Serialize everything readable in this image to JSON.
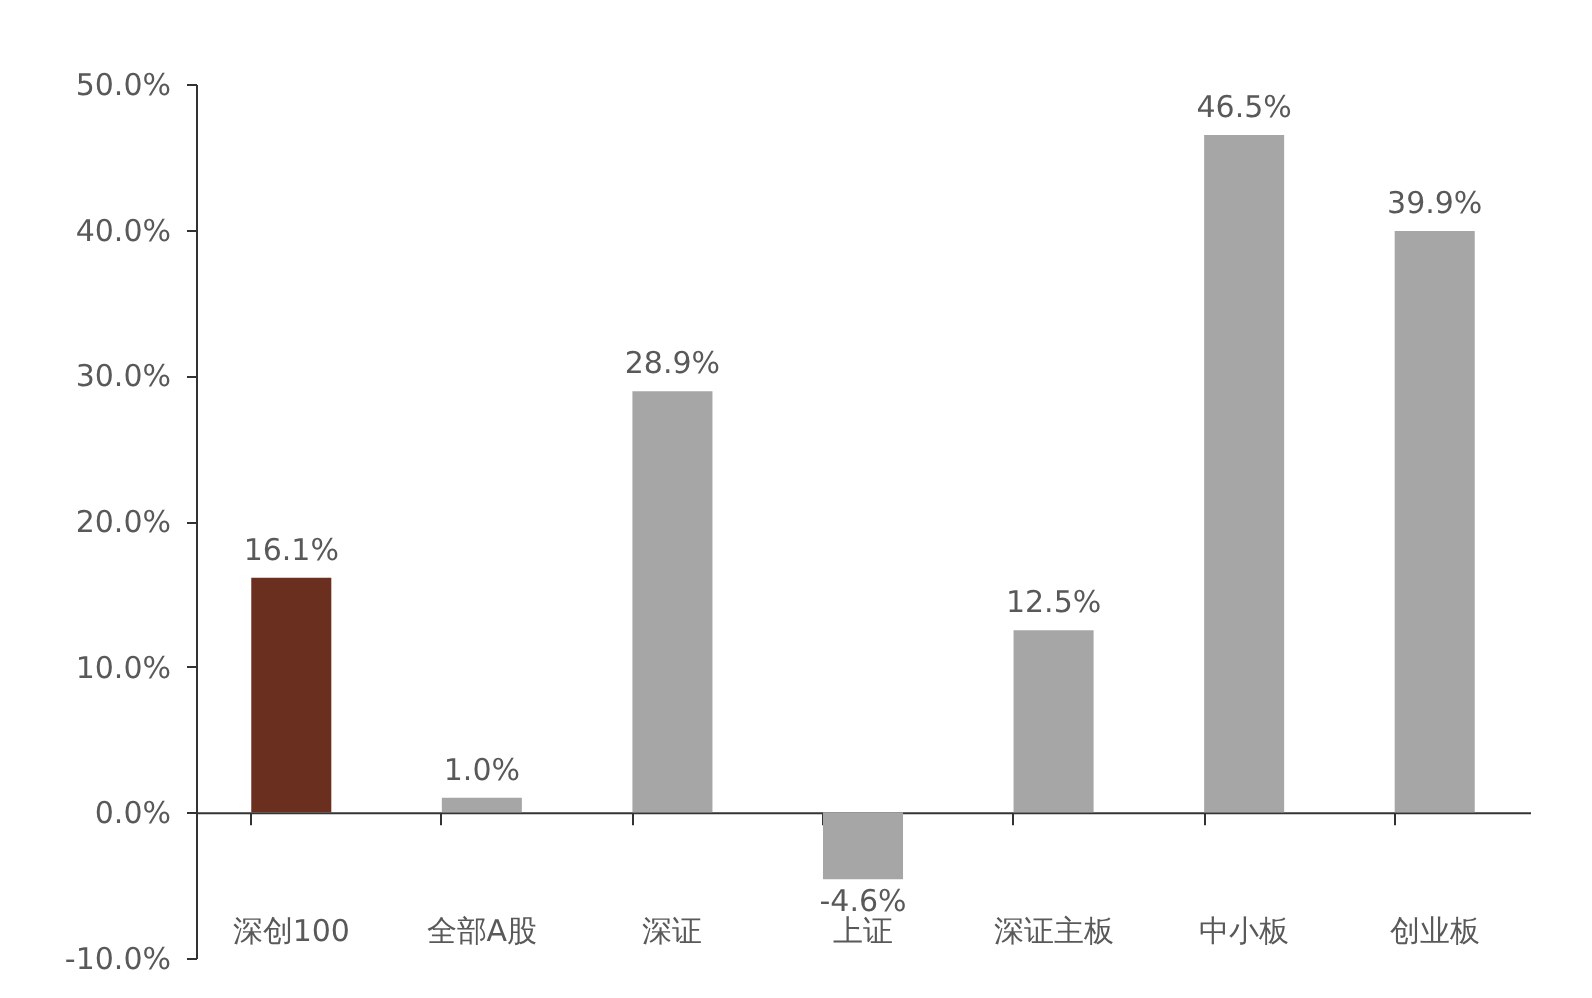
{
  "chart_data": {
    "type": "bar",
    "categories": [
      "深创100",
      "全部A股",
      "深证",
      "上证",
      "深证主板",
      "中小板",
      "创业板"
    ],
    "values": [
      16.1,
      1.0,
      28.9,
      -4.6,
      12.5,
      46.5,
      39.9
    ],
    "colors": [
      "#6b2f20",
      "#a6a6a6",
      "#a6a6a6",
      "#a6a6a6",
      "#a6a6a6",
      "#a6a6a6",
      "#a6a6a6"
    ],
    "value_labels": [
      "16.1%",
      "1.0%",
      "28.9%",
      "-4.6%",
      "12.5%",
      "46.5%",
      "39.9%"
    ],
    "ylim": [
      -10,
      50
    ],
    "yticks": [
      {
        "value": -10,
        "label": "-10.0%"
      },
      {
        "value": 0,
        "label": "0.0%"
      },
      {
        "value": 10,
        "label": "10.0%"
      },
      {
        "value": 20,
        "label": "20.0%"
      },
      {
        "value": 30,
        "label": "30.0%"
      },
      {
        "value": 40,
        "label": "40.0%"
      },
      {
        "value": 50,
        "label": "50.0%"
      }
    ]
  }
}
